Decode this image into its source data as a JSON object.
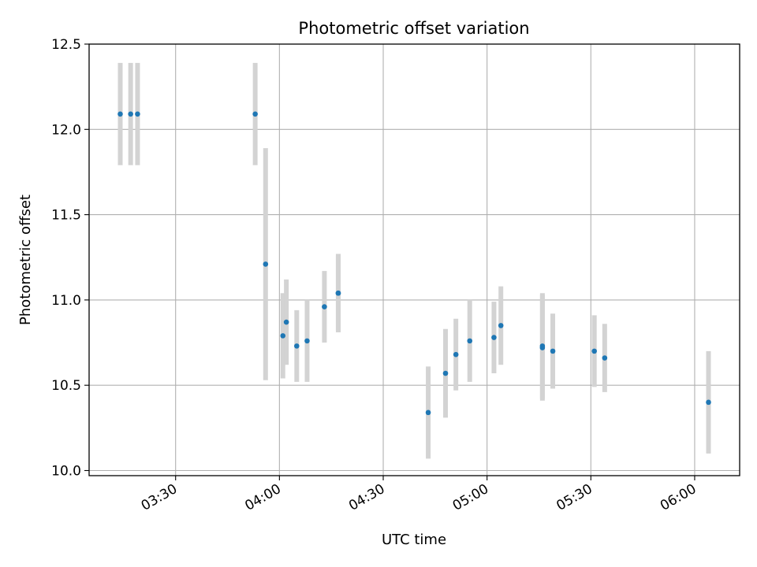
{
  "chart_data": {
    "type": "scatter",
    "title": "Photometric offset variation",
    "xlabel": "UTC time",
    "ylabel": "Photometric offset",
    "ylim": [
      9.97,
      12.5
    ],
    "xlim": [
      "03:05",
      "06:13"
    ],
    "grid": true,
    "yticks": [
      "10.0",
      "10.5",
      "11.0",
      "11.5",
      "12.0",
      "12.5"
    ],
    "xticks": [
      "03:30",
      "04:00",
      "04:30",
      "05:00",
      "05:30",
      "06:00"
    ],
    "xtick_rotation": "30 degrees",
    "marker_color": "#1f77b4",
    "errorbar_color": "#d3d3d3",
    "series": [
      {
        "points": [
          {
            "x": "03:14",
            "y": 12.09,
            "err": 0.3
          },
          {
            "x": "03:17",
            "y": 12.09,
            "err": 0.3
          },
          {
            "x": "03:19",
            "y": 12.09,
            "err": 0.3
          },
          {
            "x": "03:53",
            "y": 12.09,
            "err": 0.3
          },
          {
            "x": "03:56",
            "y": 11.21,
            "err": 0.68
          },
          {
            "x": "04:01",
            "y": 10.79,
            "err": 0.25
          },
          {
            "x": "04:02",
            "y": 10.87,
            "err": 0.25
          },
          {
            "x": "04:05",
            "y": 10.73,
            "err": 0.21
          },
          {
            "x": "04:08",
            "y": 10.76,
            "err": 0.24
          },
          {
            "x": "04:13",
            "y": 10.96,
            "err": 0.21
          },
          {
            "x": "04:17",
            "y": 11.04,
            "err": 0.22
          },
          {
            "x": "04:17",
            "y": 11.04,
            "err": 0.23
          },
          {
            "x": "04:43",
            "y": 10.34,
            "err": 0.27
          },
          {
            "x": "04:48",
            "y": 10.57,
            "err": 0.26
          },
          {
            "x": "04:51",
            "y": 10.68,
            "err": 0.21
          },
          {
            "x": "04:55",
            "y": 10.76,
            "err": 0.24
          },
          {
            "x": "05:02",
            "y": 10.78,
            "err": 0.21
          },
          {
            "x": "05:04",
            "y": 10.85,
            "err": 0.23
          },
          {
            "x": "05:16",
            "y": 10.73,
            "err": 0.31
          },
          {
            "x": "05:16",
            "y": 10.72,
            "err": 0.31
          },
          {
            "x": "05:19",
            "y": 10.7,
            "err": 0.22
          },
          {
            "x": "05:31",
            "y": 10.7,
            "err": 0.21
          },
          {
            "x": "05:34",
            "y": 10.66,
            "err": 0.2
          },
          {
            "x": "06:04",
            "y": 10.4,
            "err": 0.3
          }
        ]
      }
    ]
  }
}
